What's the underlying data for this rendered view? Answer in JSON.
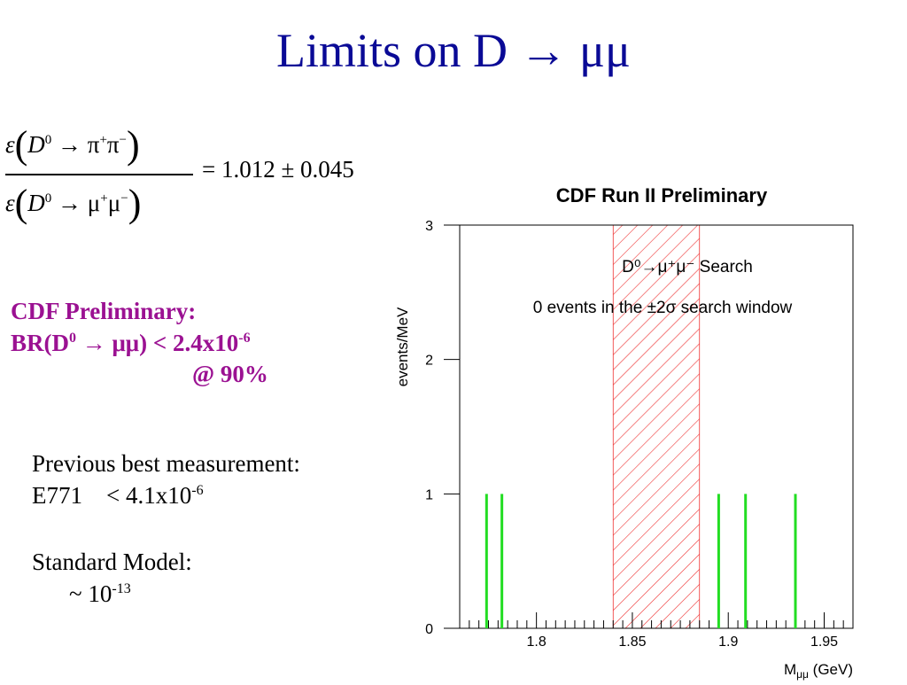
{
  "slide": {
    "title": "Limits on D → μμ"
  },
  "formula": {
    "num_lhs": "ε",
    "num_body": "D",
    "num_sup": "0",
    "num_rest": " → π",
    "num_sup2": "+",
    "num_rest2": "π",
    "num_sup3": "−",
    "den_lhs": "ε",
    "den_body": "D",
    "den_sup": "0",
    "den_rest": " → μ",
    "den_sup2": "+",
    "den_rest2": "μ",
    "den_sup3": "−",
    "result": "= 1.012 ± 0.045"
  },
  "result": {
    "line1": "CDF Preliminary:",
    "line2_a": "BR(D",
    "line2_sup": "0",
    "line2_b": " → μμ) < 2.4x10",
    "line2_exp": "-6",
    "line3": "@ 90%"
  },
  "previous": {
    "line1": "Previous best measurement:",
    "label": "E771",
    "value_a": "< 4.1x10",
    "value_exp": "-6"
  },
  "standard_model": {
    "line1": "Standard Model:",
    "value_a": "~ 10",
    "value_exp": "-13"
  },
  "chart_data": {
    "type": "bar",
    "title": "CDF Run II Preliminary",
    "xlabel": "Mμμ (GeV)",
    "ylabel": "events/MeV",
    "xlim": [
      1.76,
      1.965
    ],
    "ylim": [
      0,
      3
    ],
    "xticks": [
      1.8,
      1.85,
      1.9,
      1.95
    ],
    "xtick_labels": [
      "1.8",
      "1.85",
      "1.9",
      "1.95"
    ],
    "yticks": [
      0,
      1,
      2,
      3
    ],
    "ytick_labels": [
      "0",
      "1",
      "2",
      "3"
    ],
    "x": [
      1.774,
      1.782,
      1.895,
      1.909,
      1.935
    ],
    "values": [
      1,
      1,
      1,
      1,
      1
    ],
    "bar_color": "#22dd22",
    "search_window": [
      1.84,
      1.885
    ],
    "search_window_color": "#ee3333",
    "annotation1": "D⁰→μ⁺μ⁻ Search",
    "annotation2": "0 events in the ±2σ search window",
    "grid": false
  }
}
